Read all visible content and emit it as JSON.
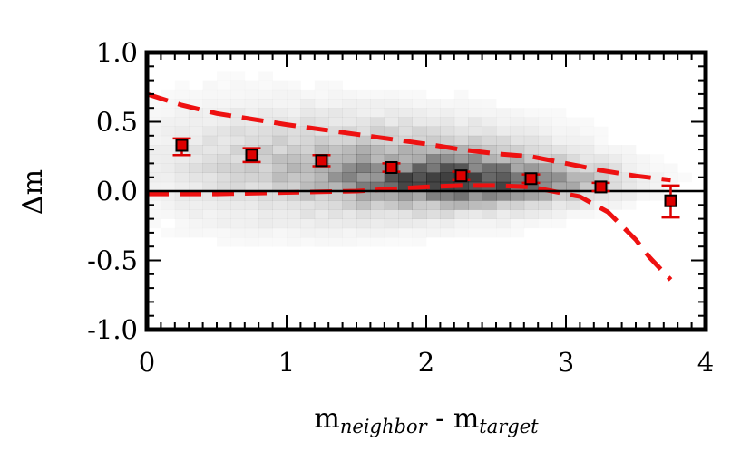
{
  "chart_data": {
    "type": "scatter",
    "xlabel_main": "m",
    "xlabel_sub1": "neighbor",
    "xlabel_mid": " - m",
    "xlabel_sub2": "target",
    "ylabel": "Δm",
    "xlim": [
      0,
      4
    ],
    "ylim": [
      -1.0,
      1.0
    ],
    "x_ticks": [
      0,
      1,
      2,
      3,
      4
    ],
    "x_tick_labels": [
      "0",
      "1",
      "2",
      "3",
      "4"
    ],
    "y_ticks": [
      1.0,
      0.5,
      0.0,
      -0.5,
      -1.0
    ],
    "y_tick_labels": [
      "1.0",
      "0.5",
      "0.0",
      "-0.5",
      "-1.0"
    ],
    "grid": false,
    "zero_line": 0.0,
    "colors": {
      "points": "#dd0000",
      "bands": "#ee1111",
      "density": "#000000"
    },
    "points": [
      {
        "x": 0.25,
        "y": 0.33,
        "err_low": 0.07,
        "err_high": 0.05
      },
      {
        "x": 0.75,
        "y": 0.26,
        "err_low": 0.05,
        "err_high": 0.05
      },
      {
        "x": 1.25,
        "y": 0.22,
        "err_low": 0.04,
        "err_high": 0.04
      },
      {
        "x": 1.75,
        "y": 0.17,
        "err_low": 0.03,
        "err_high": 0.03
      },
      {
        "x": 2.25,
        "y": 0.11,
        "err_low": 0.03,
        "err_high": 0.03
      },
      {
        "x": 2.75,
        "y": 0.09,
        "err_low": 0.03,
        "err_high": 0.03
      },
      {
        "x": 3.25,
        "y": 0.03,
        "err_low": 0.03,
        "err_high": 0.03
      },
      {
        "x": 3.75,
        "y": -0.07,
        "err_low": 0.12,
        "err_high": 0.11
      }
    ],
    "upper_band": [
      [
        0.0,
        0.7
      ],
      [
        0.25,
        0.62
      ],
      [
        0.5,
        0.56
      ],
      [
        1.0,
        0.48
      ],
      [
        1.5,
        0.41
      ],
      [
        2.0,
        0.34
      ],
      [
        2.25,
        0.3
      ],
      [
        2.5,
        0.27
      ],
      [
        2.75,
        0.25
      ],
      [
        3.0,
        0.2
      ],
      [
        3.25,
        0.15
      ],
      [
        3.5,
        0.11
      ],
      [
        3.75,
        0.08
      ]
    ],
    "lower_band": [
      [
        0.0,
        -0.02
      ],
      [
        0.5,
        -0.02
      ],
      [
        1.0,
        -0.01
      ],
      [
        1.5,
        0.0
      ],
      [
        2.0,
        0.03
      ],
      [
        2.25,
        0.04
      ],
      [
        2.5,
        0.04
      ],
      [
        2.75,
        0.03
      ],
      [
        2.9,
        0.0
      ],
      [
        3.1,
        -0.04
      ],
      [
        3.3,
        -0.15
      ],
      [
        3.5,
        -0.35
      ],
      [
        3.6,
        -0.48
      ],
      [
        3.75,
        -0.64
      ]
    ],
    "density_blobs": [
      {
        "x": 2.35,
        "y": 0.07,
        "sx": 0.55,
        "sy": 0.1,
        "w": 0.55
      },
      {
        "x": 2.0,
        "y": 0.16,
        "sx": 0.7,
        "sy": 0.22,
        "w": 0.22
      },
      {
        "x": 1.3,
        "y": 0.18,
        "sx": 0.7,
        "sy": 0.28,
        "w": 0.1
      },
      {
        "x": 0.6,
        "y": 0.25,
        "sx": 0.5,
        "sy": 0.35,
        "w": 0.06
      }
    ]
  }
}
